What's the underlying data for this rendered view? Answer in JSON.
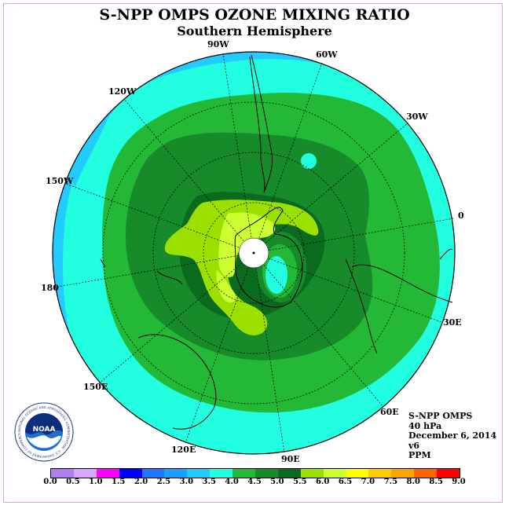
{
  "title": "S-NPP OMPS OZONE MIXING RATIO",
  "subtitle": "Southern Hemisphere",
  "longitude_labels": {
    "w90": "90W",
    "w60": "60W",
    "w30": "30W",
    "w120": "120W",
    "w150": "150W",
    "lon0": "0",
    "lon180": "180",
    "e30": "30E",
    "e60": "60E",
    "e90": "90E",
    "e120": "120E",
    "e150": "150E"
  },
  "info": {
    "instrument": "S-NPP OMPS",
    "level": "40 hPa",
    "date": "December 6, 2014",
    "version": "v6",
    "units": "PPM"
  },
  "logo": {
    "text": "NOAA",
    "ring_text": "NATIONAL OCEANIC AND ATMOSPHERIC ADMINISTRATION · U.S. DEPARTMENT OF COMMERCE"
  },
  "colorbar": {
    "ticks": [
      "0.0",
      "0.5",
      "1.0",
      "1.5",
      "2.0",
      "2.5",
      "3.0",
      "3.5",
      "4.0",
      "4.5",
      "5.0",
      "5.5",
      "6.0",
      "6.5",
      "7.0",
      "7.5",
      "8.0",
      "8.5",
      "9.0"
    ],
    "colors": [
      "#b27ff0",
      "#d9a6ff",
      "#ff00ff",
      "#0000ff",
      "#1e78ff",
      "#1aa0ff",
      "#22ccff",
      "#22ffe0",
      "#23b836",
      "#178a2a",
      "#0a6a1e",
      "#9be000",
      "#ccff33",
      "#ffff00",
      "#ffcc00",
      "#ffa500",
      "#ff6600",
      "#ff0000",
      "#a0522d"
    ]
  }
}
